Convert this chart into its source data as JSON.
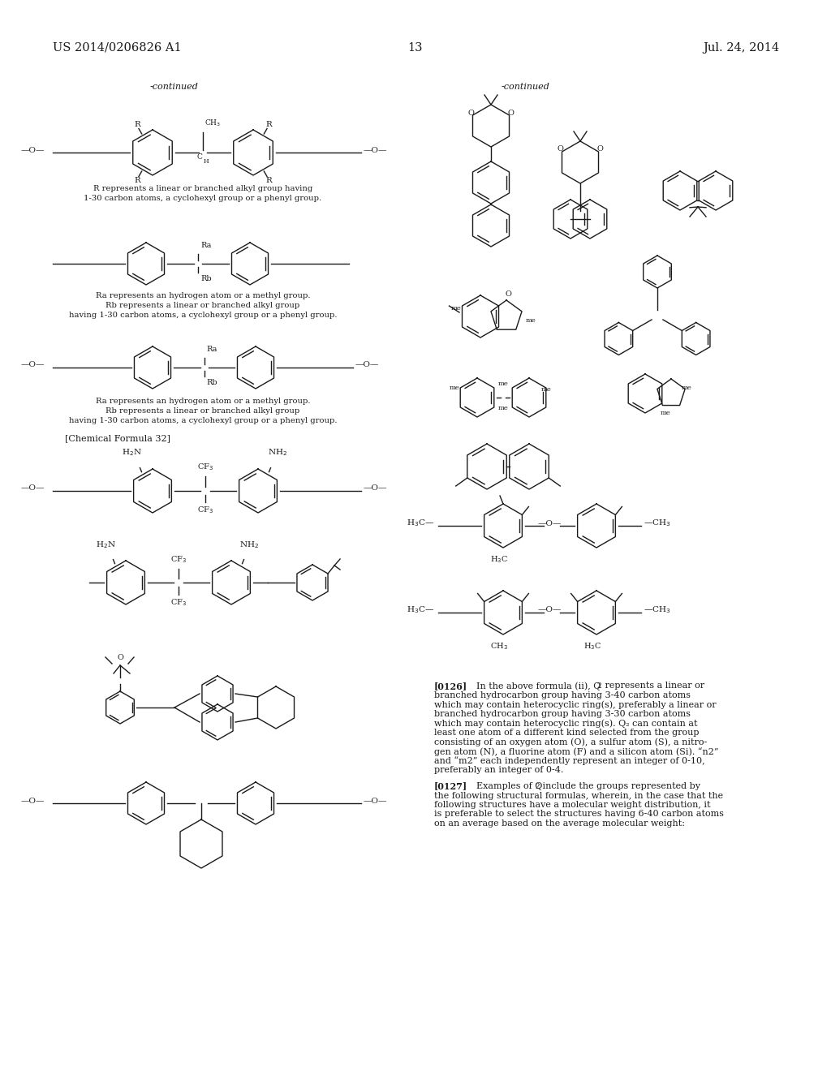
{
  "page_header_left": "US 2014/0206826 A1",
  "page_header_right": "Jul. 24, 2014",
  "page_number": "13",
  "background_color": "#ffffff",
  "text_color": "#1a1a1a",
  "font_size_header": 10.5,
  "font_size_body": 8.0,
  "font_size_small": 7.2,
  "font_size_chem": 7.0,
  "continued_left": "-continued",
  "continued_right": "-continued",
  "label_chemical_formula_32": "[Chemical Formula 32]",
  "para0126_bold": "[0126]",
  "para0126_text": "In the above formula (ii), Q₂ represents a linear or branched hydrocarbon group having 3-40 carbon atoms which may contain heterocyclic ring(s), preferably a linear or branched hydrocarbon group having 3-30 carbon atoms which may contain heterocyclic ring(s). Q₂ can contain at least one atom of a different kind selected from the group consisting of an oxygen atom (O), a sulfur atom (S), a nitro-gen atom (N), a fluorine atom (F) and a silicon atom (Si). “n2” and “m2” each independently represent an integer of 0-10, preferably an integer of 0-4.",
  "para0127_bold": "[0127]",
  "para0127_text": "Examples of Q₂ include the groups represented by the following structural formulas, wherein, in the case that the following structures have a molecular weight distribution, it is preferable to select the structures having 6-40 carbon atoms on an average based on the average molecular weight:"
}
